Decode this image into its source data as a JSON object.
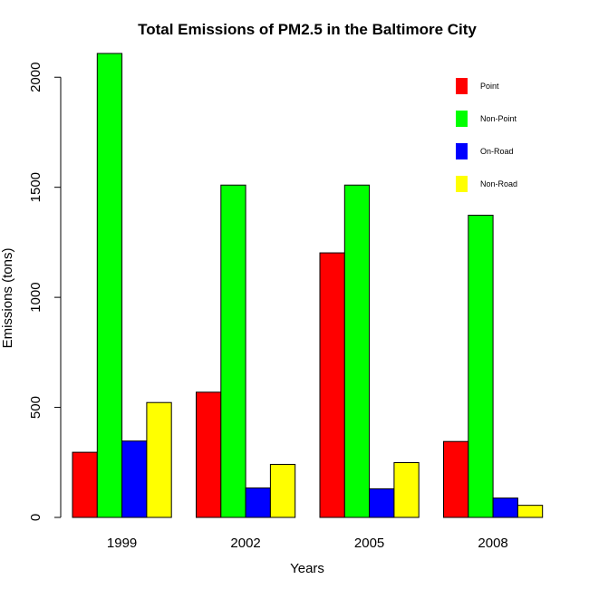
{
  "chart_data": {
    "type": "bar",
    "title": "Total Emissions of PM2.5 in the Baltimore City",
    "xlabel": "Years",
    "ylabel": "Emissions (tons)",
    "categories": [
      "1999",
      "2002",
      "2005",
      "2008"
    ],
    "series": [
      {
        "name": "Point",
        "color": "#ff0000",
        "values": [
          296,
          569,
          1202,
          345
        ]
      },
      {
        "name": "Non-Point",
        "color": "#00ff00",
        "values": [
          2108,
          1510,
          1510,
          1373
        ]
      },
      {
        "name": "On-Road",
        "color": "#0000ff",
        "values": [
          347,
          134,
          130,
          88
        ]
      },
      {
        "name": "Non-Road",
        "color": "#ffff00",
        "values": [
          522,
          241,
          249,
          55
        ]
      }
    ],
    "ylim": [
      0,
      2108
    ],
    "yticks": [
      0,
      500,
      1000,
      1500,
      2000
    ],
    "grid": false,
    "legend_position": "top-right"
  }
}
